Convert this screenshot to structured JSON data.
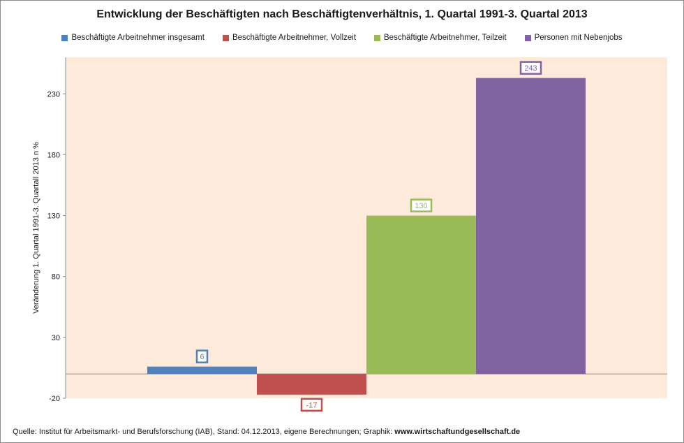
{
  "chart_data": {
    "type": "bar",
    "title": "Entwicklung der Beschäftigten nach Beschäftigtenverhältnis, 1. Quartal 1991-3. Quartal 2013",
    "ylabel": "Veränderung 1. Quartal  1991-3. Quartall 2013  n %",
    "ylim": [
      -20,
      260
    ],
    "yticks": [
      -20,
      30,
      80,
      130,
      180,
      230
    ],
    "grid": false,
    "legend_position": "top",
    "series": [
      {
        "name": "Beschäftigte Arbeitnehmer insgesamt",
        "value": 6,
        "label": "6",
        "color": "#4f81bd"
      },
      {
        "name": "Beschäftigte Arbeitnehmer, Vollzeit",
        "value": -17,
        "label": "-17",
        "color": "#c0504d"
      },
      {
        "name": "Beschäftigte Arbeitnehmer, Teilzeit",
        "value": 130,
        "label": "130",
        "color": "#9bbb59"
      },
      {
        "name": "Personen mit Nebenjobs",
        "value": 243,
        "label": "243",
        "color": "#8064a2"
      }
    ],
    "plot_background": "#fdeada"
  },
  "footer": {
    "text": "Quelle: Institut für Arbeitsmarkt- und Berufsforschung (IAB), Stand: 04.12.2013, eigene Berechnungen; Graphik: ",
    "site": "www.wirtschaftundgesellschaft.de"
  }
}
